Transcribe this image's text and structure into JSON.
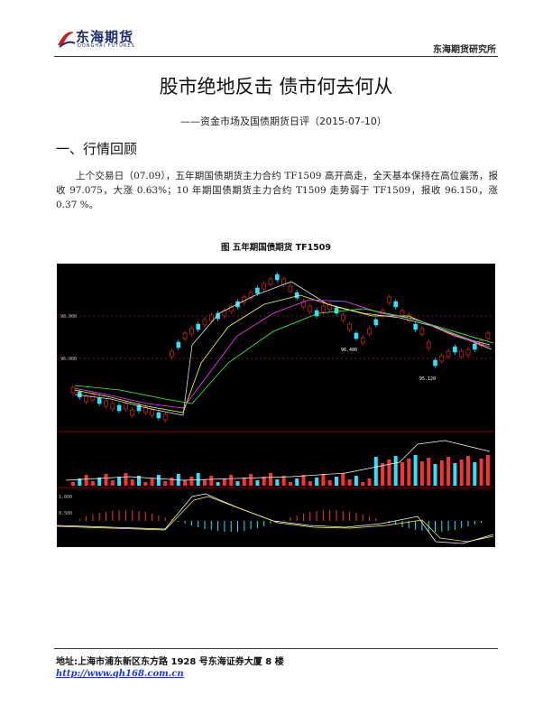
{
  "header": {
    "logo": "东海期货",
    "logo_en": "DONGHAI FUTURES",
    "org": "东海期货研究所"
  },
  "title": "股市绝地反击 债市何去何从",
  "subtitle": "——资金市场及国债期货日评（2015-07-10）",
  "section": {
    "heading": "一、行情回顾",
    "paragraph": "上个交易日（07.09），五年期国债期货主力合约 TF1509 高开高走，全天基本保持在高位震荡，报收 97.075，大涨 0.63%；10 年期国债期货主力合约 T1509 走势弱于 TF1509，报收 96.150，涨 0.37 %。"
  },
  "figure": {
    "caption": "图 五年期国债期货 TF1509",
    "price_axis": [
      "98.000",
      "96.000"
    ],
    "annotations": [
      "96.400",
      "95.120"
    ],
    "macd_axis": [
      "1.000",
      "0.500"
    ]
  },
  "footer": {
    "address": "地址:上海市浦东新区东方路 1928 号东海证券大厦 8 楼",
    "url": "http://www.qh168.com.cn"
  }
}
